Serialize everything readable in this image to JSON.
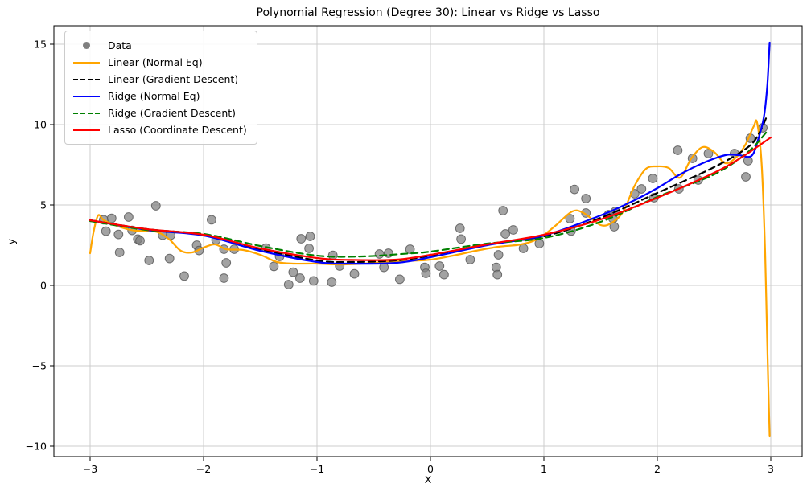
{
  "title": "Polynomial Regression (Degree 30): Linear vs Ridge vs Lasso",
  "axes": {
    "xlabel": "X",
    "ylabel": "y",
    "x_tick_values": [
      -3,
      -2,
      -1,
      0,
      1,
      2,
      3
    ],
    "x_tick_labels": [
      "−3",
      "−2",
      "−1",
      "0",
      "1",
      "2",
      "3"
    ],
    "y_tick_values": [
      -10,
      -5,
      0,
      5,
      10,
      15
    ],
    "y_tick_labels": [
      "−10",
      "−5",
      "0",
      "5",
      "10",
      "15"
    ],
    "grid": true,
    "grid_color": "#cccccc",
    "spine_color": "#000000"
  },
  "chart_data": {
    "type": "scatter",
    "title": "Polynomial Regression (Degree 30): Linear vs Ridge vs Lasso",
    "xlabel": "X",
    "ylabel": "y",
    "xlim": [
      -3.32,
      3.28
    ],
    "ylim": [
      -10.65,
      16.15
    ],
    "grid": true,
    "legend_position": "upper left",
    "scatter": {
      "name": "Data",
      "color": "#7f7f7f",
      "points": [
        [
          -2.88,
          4.08
        ],
        [
          -2.81,
          4.17
        ],
        [
          -2.66,
          4.25
        ],
        [
          -2.86,
          3.37
        ],
        [
          -2.75,
          3.17
        ],
        [
          -2.63,
          3.42
        ],
        [
          -2.58,
          2.88
        ],
        [
          -2.56,
          2.78
        ],
        [
          -2.74,
          2.05
        ],
        [
          -2.48,
          1.55
        ],
        [
          -2.42,
          4.95
        ],
        [
          -2.36,
          3.12
        ],
        [
          -2.29,
          3.12
        ],
        [
          -2.3,
          1.67
        ],
        [
          -2.17,
          0.58
        ],
        [
          -2.06,
          2.5
        ],
        [
          -2.04,
          2.17
        ],
        [
          -1.93,
          4.08
        ],
        [
          -1.89,
          2.83
        ],
        [
          -1.82,
          2.25
        ],
        [
          -1.73,
          2.25
        ],
        [
          -1.8,
          1.4
        ],
        [
          -1.82,
          0.45
        ],
        [
          -1.45,
          2.32
        ],
        [
          -1.38,
          1.18
        ],
        [
          -1.33,
          1.8
        ],
        [
          -1.25,
          0.05
        ],
        [
          -1.21,
          0.82
        ],
        [
          -1.15,
          0.45
        ],
        [
          -1.14,
          2.9
        ],
        [
          -1.06,
          3.05
        ],
        [
          -1.07,
          2.3
        ],
        [
          -1.03,
          0.28
        ],
        [
          -0.87,
          0.2
        ],
        [
          -0.86,
          1.87
        ],
        [
          -0.8,
          1.2
        ],
        [
          -0.67,
          0.72
        ],
        [
          -0.45,
          1.95
        ],
        [
          -0.41,
          1.12
        ],
        [
          -0.37,
          2.0
        ],
        [
          -0.27,
          0.38
        ],
        [
          -0.18,
          2.25
        ],
        [
          -0.05,
          1.12
        ],
        [
          -0.04,
          0.75
        ],
        [
          0.08,
          1.2
        ],
        [
          0.12,
          0.67
        ],
        [
          0.26,
          3.55
        ],
        [
          0.27,
          2.88
        ],
        [
          0.35,
          1.6
        ],
        [
          0.58,
          1.12
        ],
        [
          0.59,
          0.67
        ],
        [
          0.6,
          1.9
        ],
        [
          0.64,
          4.65
        ],
        [
          0.66,
          3.2
        ],
        [
          0.73,
          3.45
        ],
        [
          0.82,
          2.3
        ],
        [
          0.96,
          2.6
        ],
        [
          1.23,
          4.15
        ],
        [
          1.24,
          3.38
        ],
        [
          1.27,
          5.97
        ],
        [
          1.37,
          5.4
        ],
        [
          1.37,
          4.5
        ],
        [
          1.57,
          4.4
        ],
        [
          1.61,
          4.15
        ],
        [
          1.62,
          3.65
        ],
        [
          1.63,
          4.6
        ],
        [
          1.8,
          5.7
        ],
        [
          1.86,
          6.0
        ],
        [
          1.96,
          6.65
        ],
        [
          1.97,
          5.45
        ],
        [
          2.18,
          8.4
        ],
        [
          2.19,
          6.0
        ],
        [
          2.31,
          7.9
        ],
        [
          2.36,
          6.55
        ],
        [
          2.45,
          8.2
        ],
        [
          2.68,
          8.2
        ],
        [
          2.78,
          6.75
        ],
        [
          2.8,
          7.75
        ],
        [
          2.82,
          9.15
        ],
        [
          2.93,
          9.8
        ]
      ]
    },
    "series": [
      {
        "id": "linear-normal-eq",
        "label": "Linear (Normal Eq)",
        "color": "#FFA500",
        "dash": false,
        "points": [
          [
            -3,
            2.0
          ],
          [
            -2.97,
            3.3
          ],
          [
            -2.93,
            4.35
          ],
          [
            -2.88,
            4.05
          ],
          [
            -2.8,
            3.8
          ],
          [
            -2.7,
            3.55
          ],
          [
            -2.6,
            3.4
          ],
          [
            -2.5,
            3.4
          ],
          [
            -2.4,
            3.3
          ],
          [
            -2.3,
            2.85
          ],
          [
            -2.2,
            2.15
          ],
          [
            -2.1,
            2.05
          ],
          [
            -2.0,
            2.35
          ],
          [
            -1.9,
            2.55
          ],
          [
            -1.8,
            2.25
          ],
          [
            -1.65,
            2.2
          ],
          [
            -1.5,
            1.9
          ],
          [
            -1.35,
            1.45
          ],
          [
            -1.2,
            1.35
          ],
          [
            -1.0,
            1.35
          ],
          [
            -0.8,
            1.3
          ],
          [
            -0.6,
            1.35
          ],
          [
            -0.4,
            1.45
          ],
          [
            -0.2,
            1.52
          ],
          [
            0,
            1.6
          ],
          [
            0.2,
            1.85
          ],
          [
            0.4,
            2.15
          ],
          [
            0.6,
            2.4
          ],
          [
            0.8,
            2.55
          ],
          [
            0.95,
            2.9
          ],
          [
            1.1,
            3.7
          ],
          [
            1.25,
            4.6
          ],
          [
            1.35,
            4.5
          ],
          [
            1.5,
            3.75
          ],
          [
            1.6,
            3.9
          ],
          [
            1.7,
            4.6
          ],
          [
            1.8,
            6.2
          ],
          [
            1.9,
            7.25
          ],
          [
            2.0,
            7.4
          ],
          [
            2.1,
            7.3
          ],
          [
            2.2,
            6.7
          ],
          [
            2.3,
            7.9
          ],
          [
            2.4,
            8.6
          ],
          [
            2.5,
            8.3
          ],
          [
            2.6,
            7.6
          ],
          [
            2.7,
            8.0
          ],
          [
            2.78,
            8.8
          ],
          [
            2.85,
            9.9
          ],
          [
            2.88,
            10.1
          ],
          [
            2.92,
            7.5
          ],
          [
            2.95,
            2.0
          ],
          [
            2.97,
            -4.0
          ],
          [
            2.99,
            -9.4
          ]
        ]
      },
      {
        "id": "linear-gradient-descent",
        "label": "Linear (Gradient Descent)",
        "color": "#000000",
        "dash": true,
        "points": [
          [
            -3,
            4.05
          ],
          [
            -2.5,
            3.5
          ],
          [
            -2,
            3.15
          ],
          [
            -1.5,
            2.25
          ],
          [
            -1,
            1.55
          ],
          [
            -0.7,
            1.45
          ],
          [
            -0.3,
            1.55
          ],
          [
            0,
            1.85
          ],
          [
            0.5,
            2.55
          ],
          [
            1,
            3.05
          ],
          [
            1.5,
            4.2
          ],
          [
            2,
            5.75
          ],
          [
            2.5,
            7.35
          ],
          [
            2.8,
            8.6
          ],
          [
            2.9,
            9.5
          ],
          [
            2.97,
            10.6
          ]
        ]
      },
      {
        "id": "ridge-normal-eq",
        "label": "Ridge (Normal Eq)",
        "color": "#0000FF",
        "dash": false,
        "points": [
          [
            -3,
            4.05
          ],
          [
            -2.5,
            3.45
          ],
          [
            -2,
            3.1
          ],
          [
            -1.5,
            2.15
          ],
          [
            -1,
            1.45
          ],
          [
            -0.7,
            1.35
          ],
          [
            -0.3,
            1.4
          ],
          [
            0,
            1.75
          ],
          [
            0.5,
            2.5
          ],
          [
            1,
            3.1
          ],
          [
            1.5,
            4.35
          ],
          [
            1.8,
            5.3
          ],
          [
            2,
            6.05
          ],
          [
            2.2,
            6.9
          ],
          [
            2.4,
            7.6
          ],
          [
            2.6,
            8.1
          ],
          [
            2.72,
            8.1
          ],
          [
            2.83,
            8.05
          ],
          [
            2.89,
            9.1
          ],
          [
            2.94,
            10.5
          ],
          [
            2.97,
            12.5
          ],
          [
            2.99,
            15.1
          ]
        ]
      },
      {
        "id": "ridge-gradient-descent",
        "label": "Ridge (Gradient Descent)",
        "color": "#008000",
        "dash": true,
        "points": [
          [
            -3,
            4.0
          ],
          [
            -2.5,
            3.45
          ],
          [
            -2,
            3.2
          ],
          [
            -1.5,
            2.45
          ],
          [
            -1,
            1.85
          ],
          [
            -0.6,
            1.8
          ],
          [
            -0.2,
            1.98
          ],
          [
            0,
            2.1
          ],
          [
            0.5,
            2.6
          ],
          [
            1,
            2.95
          ],
          [
            1.5,
            3.95
          ],
          [
            2,
            5.5
          ],
          [
            2.5,
            6.9
          ],
          [
            2.8,
            8.3
          ],
          [
            2.97,
            9.6
          ]
        ]
      },
      {
        "id": "lasso-coordinate-descent",
        "label": "Lasso (Coordinate Descent)",
        "color": "#FF0000",
        "dash": false,
        "points": [
          [
            -3,
            4.05
          ],
          [
            -2.5,
            3.5
          ],
          [
            -2,
            3.15
          ],
          [
            -1.5,
            2.3
          ],
          [
            -1,
            1.7
          ],
          [
            -0.7,
            1.58
          ],
          [
            -0.3,
            1.6
          ],
          [
            0,
            1.9
          ],
          [
            0.5,
            2.55
          ],
          [
            1,
            3.15
          ],
          [
            1.5,
            4.1
          ],
          [
            2,
            5.45
          ],
          [
            2.5,
            7.0
          ],
          [
            2.75,
            8.0
          ],
          [
            3,
            9.2
          ]
        ]
      }
    ]
  }
}
